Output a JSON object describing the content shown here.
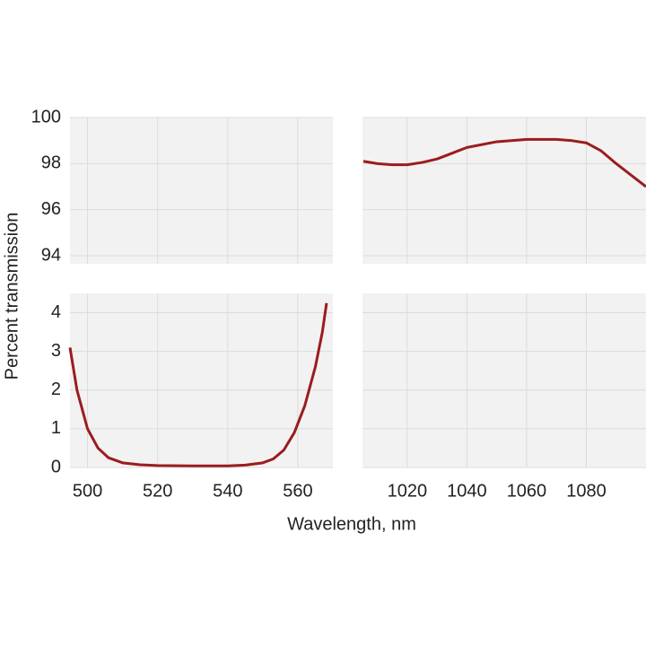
{
  "chart_data": {
    "type": "line",
    "xlabel": "Wavelength, nm",
    "ylabel": "Percent  transmission",
    "x_axes": [
      {
        "xlim": [
          495,
          570
        ],
        "xticks": [
          500,
          520,
          540,
          560
        ]
      },
      {
        "xlim": [
          1005,
          1100
        ],
        "xticks": [
          1020,
          1040,
          1060,
          1080
        ]
      }
    ],
    "y_axes": [
      {
        "ylim": [
          0,
          4.5
        ],
        "yticks": [
          0,
          1,
          2,
          3,
          4
        ]
      },
      {
        "ylim": [
          93.65,
          100
        ],
        "yticks": [
          94,
          96,
          98,
          100
        ]
      }
    ],
    "series": [
      {
        "color": "#9b1c1f",
        "x": [
          495,
          497,
          500,
          503,
          506,
          510,
          515,
          520,
          530,
          540,
          545,
          550,
          553,
          556,
          559,
          562,
          565,
          567,
          568.2
        ],
        "values": [
          3.1,
          2.0,
          1.0,
          0.5,
          0.25,
          0.12,
          0.07,
          0.05,
          0.04,
          0.04,
          0.06,
          0.12,
          0.22,
          0.45,
          0.9,
          1.6,
          2.6,
          3.5,
          4.25
        ]
      },
      {
        "color": "#9b1c1f",
        "x": [
          1005.3,
          1010,
          1015,
          1020,
          1025,
          1030,
          1035,
          1040,
          1050,
          1060,
          1070,
          1075,
          1080,
          1085,
          1090,
          1095,
          1100
        ],
        "values": [
          98.1,
          98.0,
          97.95,
          97.95,
          98.05,
          98.2,
          98.45,
          98.7,
          98.95,
          99.05,
          99.05,
          99.0,
          98.9,
          98.55,
          98.0,
          97.5,
          97.0
        ]
      }
    ]
  }
}
